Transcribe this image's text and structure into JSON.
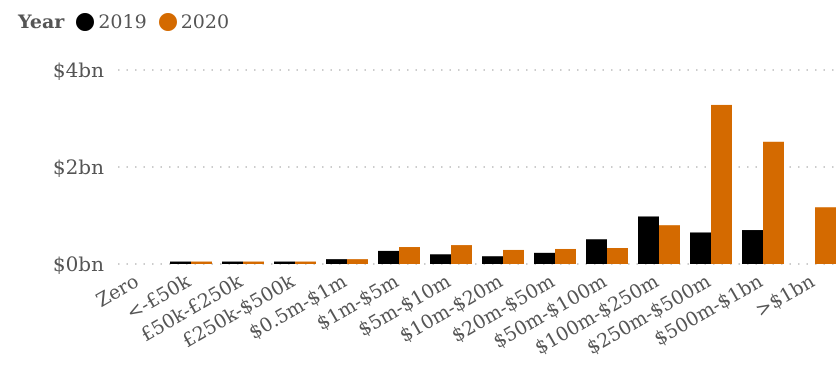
{
  "chart_data": {
    "type": "bar",
    "legend": {
      "title": "Year",
      "placement": "top-left"
    },
    "categories": [
      "Zero",
      "<-£50k",
      "£50k-£250k",
      "£250k-$500k",
      "$0.5m-$1m",
      "$1m-$5m",
      "$5m-$10m",
      "$10m-$20m",
      "$20m-$50m",
      "$50m-$100m",
      "$100m-$250m",
      "$250m-$500m",
      "$500m-$1bn",
      ">$1bn"
    ],
    "series": [
      {
        "name": "2019",
        "color": "#000000",
        "values": [
          0,
          0.05,
          0.05,
          0.05,
          0.1,
          0.27,
          0.2,
          0.16,
          0.23,
          0.51,
          0.98,
          0.65,
          0.7,
          0
        ]
      },
      {
        "name": "2020",
        "color": "#d46a00",
        "values": [
          0,
          0.05,
          0.05,
          0.05,
          0.1,
          0.35,
          0.39,
          0.29,
          0.31,
          0.33,
          0.8,
          3.28,
          2.52,
          1.17
        ]
      }
    ],
    "yticks": [
      {
        "value": 0,
        "label": "$0bn"
      },
      {
        "value": 2,
        "label": "$2bn"
      },
      {
        "value": 4,
        "label": "$4bn"
      }
    ],
    "ylim": [
      0,
      4
    ],
    "grid": true,
    "xlabel": "",
    "ylabel": ""
  }
}
